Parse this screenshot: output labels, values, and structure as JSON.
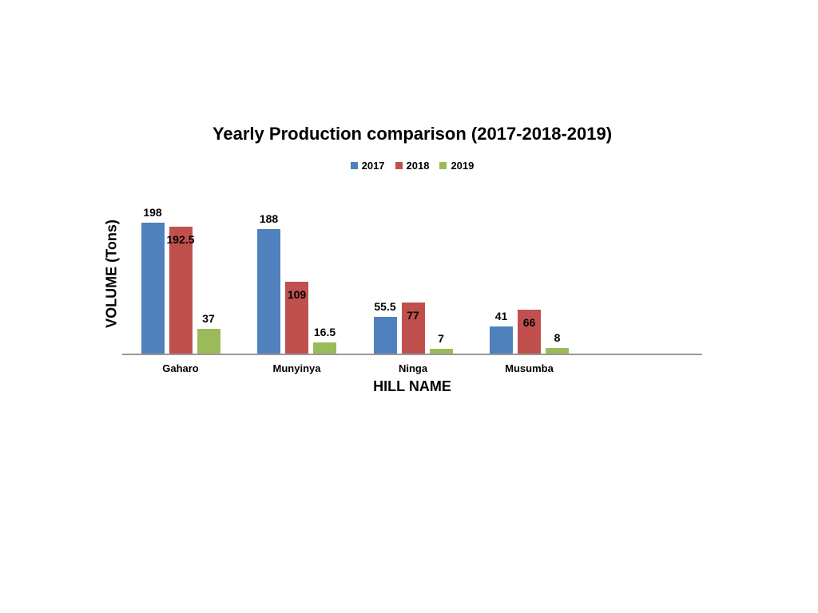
{
  "chart_data": {
    "type": "bar",
    "title": "Yearly Production comparison (2017-2018-2019)",
    "xlabel": "HILL NAME",
    "ylabel": "VOLUME (Tons)",
    "categories": [
      "Gaharo",
      "Munyinya",
      "Ninga",
      "Musumba"
    ],
    "series": [
      {
        "name": "2017",
        "color": "#4F81BD",
        "label_position": "outside",
        "values": [
          198,
          188,
          55.5,
          41
        ]
      },
      {
        "name": "2018",
        "color": "#C0504D",
        "label_position": "inside",
        "values": [
          192.5,
          109,
          77,
          66
        ]
      },
      {
        "name": "2019",
        "color": "#9BBB59",
        "label_position": "outside",
        "values": [
          37,
          16.5,
          7,
          8
        ]
      }
    ],
    "ylim": [
      0,
      250
    ],
    "grid": false,
    "legend_position": "top",
    "axis_line_color": "#989898",
    "data_labels_shown": true,
    "y_tick_labels_shown": false
  }
}
